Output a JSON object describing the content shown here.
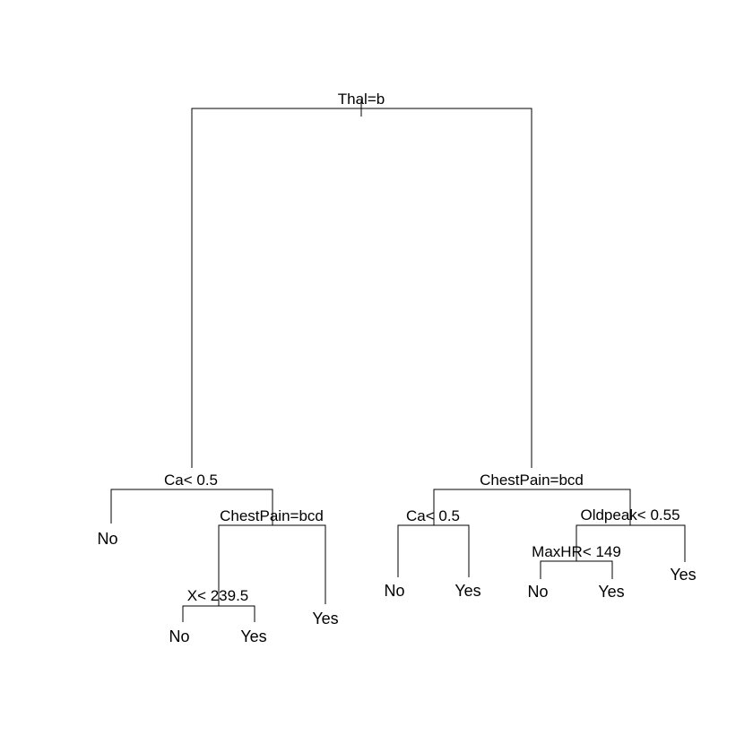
{
  "tree": {
    "root_split": "Thal=b",
    "left": {
      "split": "Ca< 0.5",
      "leaf_left": "No",
      "right": {
        "split": "ChestPain=bcd",
        "left": {
          "split": "X< 239.5",
          "leaf_left": "No",
          "leaf_right": "Yes"
        },
        "leaf_right": "Yes"
      }
    },
    "right": {
      "split": "ChestPain=bcd",
      "left": {
        "split": "Ca< 0.5",
        "leaf_left": "No",
        "leaf_right": "Yes"
      },
      "right": {
        "split": "Oldpeak< 0.55",
        "left": {
          "split": "MaxHR< 149",
          "leaf_left": "No",
          "leaf_right": "Yes"
        },
        "leaf_right": "Yes"
      }
    }
  }
}
